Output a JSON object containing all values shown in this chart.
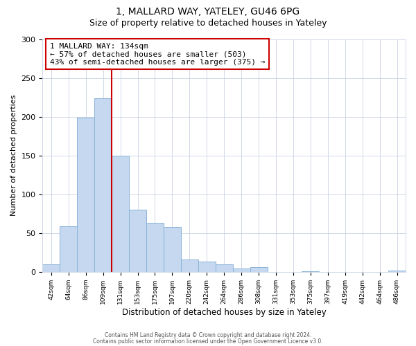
{
  "title_line1": "1, MALLARD WAY, YATELEY, GU46 6PG",
  "title_line2": "Size of property relative to detached houses in Yateley",
  "xlabel": "Distribution of detached houses by size in Yateley",
  "ylabel": "Number of detached properties",
  "bar_labels": [
    "42sqm",
    "64sqm",
    "86sqm",
    "109sqm",
    "131sqm",
    "153sqm",
    "175sqm",
    "197sqm",
    "220sqm",
    "242sqm",
    "264sqm",
    "286sqm",
    "308sqm",
    "331sqm",
    "353sqm",
    "375sqm",
    "397sqm",
    "419sqm",
    "442sqm",
    "464sqm",
    "486sqm"
  ],
  "bar_values": [
    10,
    59,
    199,
    224,
    150,
    80,
    63,
    58,
    16,
    13,
    10,
    4,
    6,
    0,
    0,
    1,
    0,
    0,
    0,
    0,
    2
  ],
  "bar_color": "#c5d8f0",
  "bar_edge_color": "#8ab4d8",
  "vline_x_index": 4,
  "vline_color": "#cc0000",
  "annotation_text": "1 MALLARD WAY: 134sqm\n← 57% of detached houses are smaller (503)\n43% of semi-detached houses are larger (375) →",
  "annotation_box_color": "#ffffff",
  "annotation_box_edge": "#cc0000",
  "ylim": [
    0,
    300
  ],
  "yticks": [
    0,
    50,
    100,
    150,
    200,
    250,
    300
  ],
  "footer_line1": "Contains HM Land Registry data © Crown copyright and database right 2024.",
  "footer_line2": "Contains public sector information licensed under the Open Government Licence v3.0.",
  "background_color": "#ffffff",
  "grid_color": "#d0d8e8"
}
